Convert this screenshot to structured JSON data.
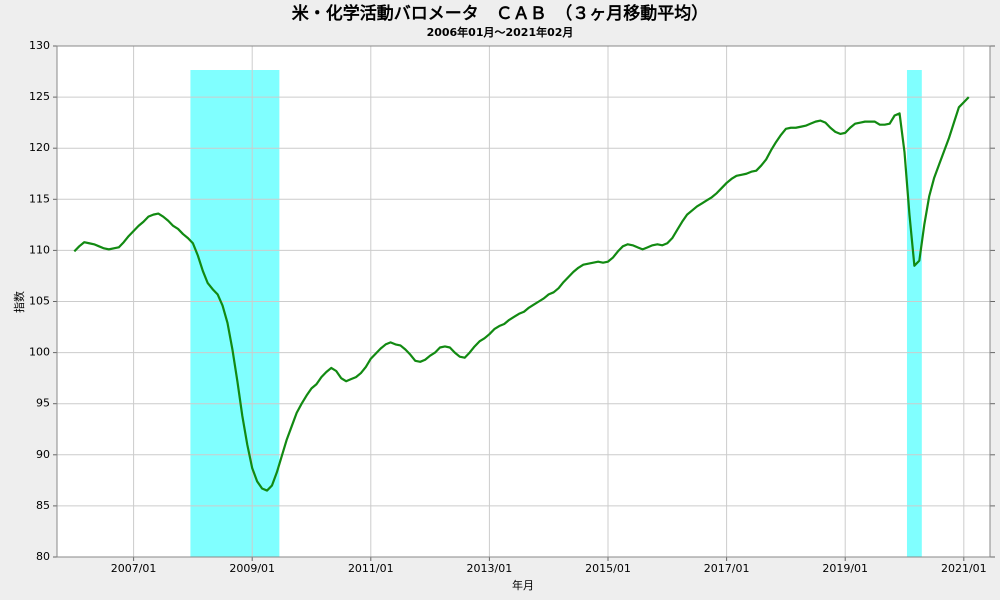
{
  "chart_data": {
    "type": "line",
    "title": "米・化学活動バロメータ　ＣＡＢ　（３ヶ月移動平均）",
    "subtitle": "2006年01月～2021年02月",
    "x_label": "年月",
    "y_label": "指数",
    "color": "#128a12",
    "shade_color": "#80ffff",
    "grid": true,
    "ylim": [
      80,
      130
    ],
    "yticks": [
      80,
      85,
      90,
      95,
      100,
      105,
      110,
      115,
      120,
      125,
      130
    ],
    "xticks": [
      "2007/01",
      "2009/01",
      "2011/01",
      "2013/01",
      "2015/01",
      "2017/01",
      "2019/01",
      "2021/01"
    ],
    "shaded_ranges": [
      [
        "2008/01",
        "2009/06"
      ],
      [
        "2020/02",
        "2020/04"
      ]
    ],
    "x": [
      "2006/01",
      "2006/02",
      "2006/03",
      "2006/04",
      "2006/05",
      "2006/06",
      "2006/07",
      "2006/08",
      "2006/09",
      "2006/10",
      "2006/11",
      "2006/12",
      "2007/01",
      "2007/02",
      "2007/03",
      "2007/04",
      "2007/05",
      "2007/06",
      "2007/07",
      "2007/08",
      "2007/09",
      "2007/10",
      "2007/11",
      "2007/12",
      "2008/01",
      "2008/02",
      "2008/03",
      "2008/04",
      "2008/05",
      "2008/06",
      "2008/07",
      "2008/08",
      "2008/09",
      "2008/10",
      "2008/11",
      "2008/12",
      "2009/01",
      "2009/02",
      "2009/03",
      "2009/04",
      "2009/05",
      "2009/06",
      "2009/07",
      "2009/08",
      "2009/09",
      "2009/10",
      "2009/11",
      "2009/12",
      "2010/01",
      "2010/02",
      "2010/03",
      "2010/04",
      "2010/05",
      "2010/06",
      "2010/07",
      "2010/08",
      "2010/09",
      "2010/10",
      "2010/11",
      "2010/12",
      "2011/01",
      "2011/02",
      "2011/03",
      "2011/04",
      "2011/05",
      "2011/06",
      "2011/07",
      "2011/08",
      "2011/09",
      "2011/10",
      "2011/11",
      "2011/12",
      "2012/01",
      "2012/02",
      "2012/03",
      "2012/04",
      "2012/05",
      "2012/06",
      "2012/07",
      "2012/08",
      "2012/09",
      "2012/10",
      "2012/11",
      "2012/12",
      "2013/01",
      "2013/02",
      "2013/03",
      "2013/04",
      "2013/05",
      "2013/06",
      "2013/07",
      "2013/08",
      "2013/09",
      "2013/10",
      "2013/11",
      "2013/12",
      "2014/01",
      "2014/02",
      "2014/03",
      "2014/04",
      "2014/05",
      "2014/06",
      "2014/07",
      "2014/08",
      "2014/09",
      "2014/10",
      "2014/11",
      "2014/12",
      "2015/01",
      "2015/02",
      "2015/03",
      "2015/04",
      "2015/05",
      "2015/06",
      "2015/07",
      "2015/08",
      "2015/09",
      "2015/10",
      "2015/11",
      "2015/12",
      "2016/01",
      "2016/02",
      "2016/03",
      "2016/04",
      "2016/05",
      "2016/06",
      "2016/07",
      "2016/08",
      "2016/09",
      "2016/10",
      "2016/11",
      "2016/12",
      "2017/01",
      "2017/02",
      "2017/03",
      "2017/04",
      "2017/05",
      "2017/06",
      "2017/07",
      "2017/08",
      "2017/09",
      "2017/10",
      "2017/11",
      "2017/12",
      "2018/01",
      "2018/02",
      "2018/03",
      "2018/04",
      "2018/05",
      "2018/06",
      "2018/07",
      "2018/08",
      "2018/09",
      "2018/10",
      "2018/11",
      "2018/12",
      "2019/01",
      "2019/02",
      "2019/03",
      "2019/04",
      "2019/05",
      "2019/06",
      "2019/07",
      "2019/08",
      "2019/09",
      "2019/10",
      "2019/11",
      "2019/12",
      "2020/01",
      "2020/02",
      "2020/03",
      "2020/04",
      "2020/05",
      "2020/06",
      "2020/07",
      "2020/08",
      "2020/09",
      "2020/10",
      "2020/11",
      "2020/12",
      "2021/01",
      "2021/02"
    ],
    "values": [
      109.9,
      110.4,
      110.8,
      110.7,
      110.6,
      110.4,
      110.2,
      110.1,
      110.2,
      110.3,
      110.8,
      111.4,
      111.9,
      112.4,
      112.8,
      113.3,
      113.5,
      113.6,
      113.3,
      112.9,
      112.4,
      112.1,
      111.6,
      111.2,
      110.7,
      109.5,
      108.0,
      106.8,
      106.2,
      105.7,
      104.6,
      102.9,
      100.3,
      97.2,
      93.8,
      91.0,
      88.7,
      87.4,
      86.7,
      86.5,
      87.0,
      88.3,
      89.9,
      91.5,
      92.8,
      94.1,
      95.0,
      95.8,
      96.5,
      96.9,
      97.6,
      98.1,
      98.5,
      98.2,
      97.5,
      97.2,
      97.4,
      97.6,
      98.0,
      98.6,
      99.4,
      99.9,
      100.4,
      100.8,
      101.0,
      100.8,
      100.7,
      100.3,
      99.8,
      99.2,
      99.1,
      99.3,
      99.7,
      100.0,
      100.5,
      100.6,
      100.5,
      100.0,
      99.6,
      99.5,
      100.0,
      100.6,
      101.1,
      101.4,
      101.8,
      102.3,
      102.6,
      102.8,
      103.2,
      103.5,
      103.8,
      104.0,
      104.4,
      104.7,
      105.0,
      105.3,
      105.7,
      105.9,
      106.3,
      106.9,
      107.4,
      107.9,
      108.3,
      108.6,
      108.7,
      108.8,
      108.9,
      108.8,
      108.9,
      109.3,
      109.9,
      110.4,
      110.6,
      110.5,
      110.3,
      110.1,
      110.3,
      110.5,
      110.6,
      110.5,
      110.7,
      111.2,
      112.0,
      112.8,
      113.5,
      113.9,
      114.3,
      114.6,
      114.9,
      115.2,
      115.6,
      116.1,
      116.6,
      117.0,
      117.3,
      117.4,
      117.5,
      117.7,
      117.8,
      118.3,
      118.9,
      119.8,
      120.6,
      121.3,
      121.9,
      122.0,
      122.0,
      122.1,
      122.2,
      122.4,
      122.6,
      122.7,
      122.5,
      122.0,
      121.6,
      121.4,
      121.5,
      122.0,
      122.4,
      122.5,
      122.6,
      122.6,
      122.6,
      122.3,
      122.3,
      122.4,
      123.2,
      123.4,
      119.6,
      113.5,
      108.5,
      109.0,
      112.5,
      115.3,
      117.1,
      118.4,
      119.7,
      121.0,
      122.5,
      124.0,
      124.5,
      125.0
    ]
  }
}
